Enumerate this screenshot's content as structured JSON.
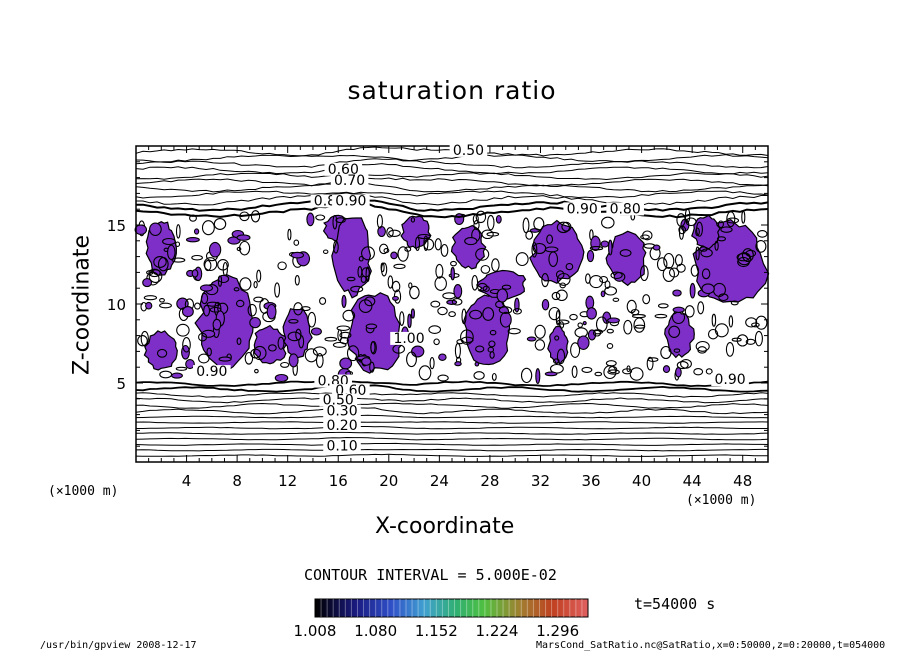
{
  "chart_data": {
    "type": "contour",
    "title": "saturation ratio",
    "xlabel": "X-coordinate",
    "ylabel": "Z-coordinate",
    "x_unit": "(×1000 m)",
    "y_unit": "(×1000 m)",
    "xlim": [
      0,
      50
    ],
    "ylim": [
      0,
      20
    ],
    "x_ticks": [
      4,
      8,
      12,
      16,
      20,
      24,
      28,
      32,
      36,
      40,
      44,
      48
    ],
    "y_ticks": [
      5,
      10,
      15
    ],
    "contour_interval": "CONTOUR INTERVAL = 5.000E-02",
    "contour_labels": [
      {
        "text": "0.50",
        "x": 26.3,
        "z": 19.5
      },
      {
        "text": "0.60",
        "x": 16.4,
        "z": 18.3
      },
      {
        "text": "0.70",
        "x": 16.9,
        "z": 17.6
      },
      {
        "text": "0.80",
        "x": 15.3,
        "z": 16.3
      },
      {
        "text": "0.90",
        "x": 17.0,
        "z": 16.3
      },
      {
        "text": "0.90",
        "x": 35.3,
        "z": 15.8
      },
      {
        "text": "0.80",
        "x": 38.7,
        "z": 15.8
      },
      {
        "text": "1.00",
        "x": 21.6,
        "z": 7.6
      },
      {
        "text": "0.90",
        "x": 6.0,
        "z": 5.5
      },
      {
        "text": "0.80",
        "x": 15.6,
        "z": 4.9
      },
      {
        "text": "0.60",
        "x": 17.0,
        "z": 4.3
      },
      {
        "text": "0.50",
        "x": 16.0,
        "z": 3.7
      },
      {
        "text": "0.30",
        "x": 16.3,
        "z": 3.0
      },
      {
        "text": "0.20",
        "x": 16.3,
        "z": 2.1
      },
      {
        "text": "0.10",
        "x": 16.3,
        "z": 0.8
      },
      {
        "text": "0.90",
        "x": 47.0,
        "z": 5.0
      }
    ],
    "shaded_regions": [
      {
        "x": [
          0.7,
          3.3
        ],
        "z": [
          5.8,
          8.3
        ]
      },
      {
        "x": [
          4.8,
          9.5
        ],
        "z": [
          5.8,
          11.8
        ]
      },
      {
        "x": [
          9.2,
          12.0
        ],
        "z": [
          6.2,
          8.6
        ]
      },
      {
        "x": [
          11.6,
          13.9
        ],
        "z": [
          6.6,
          9.8
        ]
      },
      {
        "x": [
          0.8,
          3.2
        ],
        "z": [
          11.8,
          15.3
        ]
      },
      {
        "x": [
          14.8,
          17.2
        ],
        "z": [
          14.0,
          15.6
        ]
      },
      {
        "x": [
          16.6,
          21.2
        ],
        "z": [
          5.6,
          10.8
        ]
      },
      {
        "x": [
          15.5,
          18.7
        ],
        "z": [
          10.5,
          15.6
        ]
      },
      {
        "x": [
          26.0,
          29.8
        ],
        "z": [
          6.0,
          10.8
        ]
      },
      {
        "x": [
          27.0,
          31.0
        ],
        "z": [
          10.3,
          12.1
        ]
      },
      {
        "x": [
          21.0,
          23.3
        ],
        "z": [
          13.5,
          15.6
        ]
      },
      {
        "x": [
          25.0,
          27.6
        ],
        "z": [
          12.2,
          15.0
        ]
      },
      {
        "x": [
          31.2,
          35.4
        ],
        "z": [
          11.3,
          15.3
        ]
      },
      {
        "x": [
          32.6,
          34.2
        ],
        "z": [
          6.2,
          8.6
        ]
      },
      {
        "x": [
          37.3,
          40.5
        ],
        "z": [
          11.2,
          14.6
        ]
      },
      {
        "x": [
          41.8,
          44.1
        ],
        "z": [
          6.6,
          9.6
        ]
      },
      {
        "x": [
          44.2,
          49.9
        ],
        "z": [
          9.8,
          15.3
        ]
      },
      {
        "x": [
          44.0,
          46.2
        ],
        "z": [
          13.5,
          15.6
        ]
      }
    ],
    "colorbar": {
      "labels": [
        "1.008",
        "1.080",
        "1.152",
        "1.224",
        "1.296"
      ],
      "range": [
        1.008,
        1.332
      ]
    },
    "time_label": "t=54000 s"
  },
  "footer": {
    "left": "/usr/bin/gpview  2008-12-17",
    "right": "MarsCond_SatRatio.nc@SatRatio,x=0:50000,z=0:20000,t=054000"
  },
  "colors": {
    "fill": "#7d2fc8",
    "line": "#000000"
  }
}
